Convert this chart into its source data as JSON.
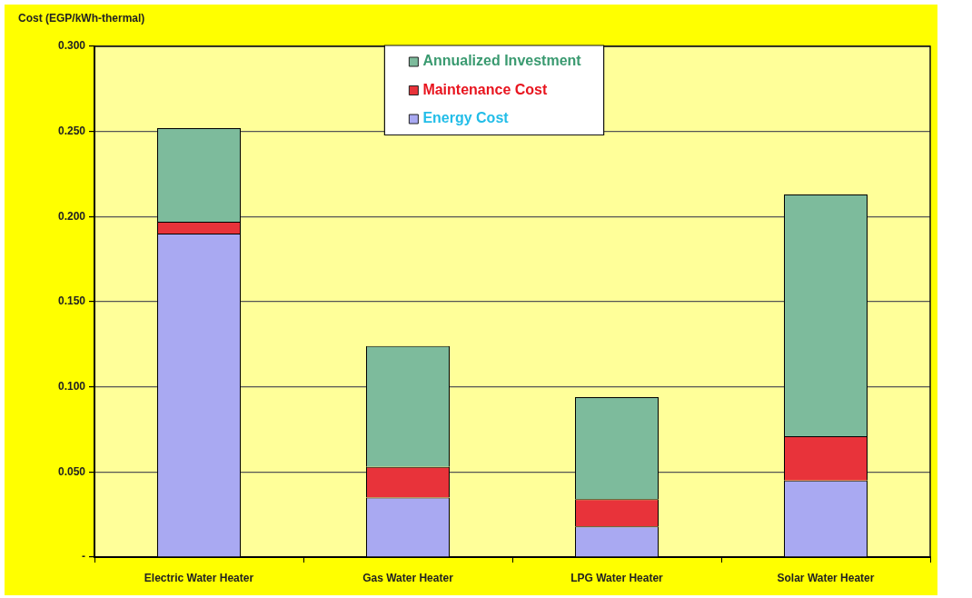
{
  "chart_data": {
    "type": "bar",
    "ylabel": "Cost (EGP/kWh-thermal)",
    "categories": [
      "Electric Water Heater",
      "Gas Water Heater",
      "LPG Water Heater",
      "Solar Water Heater"
    ],
    "series": [
      {
        "name": "Energy Cost",
        "color": "#a9a9f2",
        "values": [
          0.19,
          0.035,
          0.018,
          0.045
        ]
      },
      {
        "name": "Maintenance Cost",
        "color": "#e8333a",
        "values": [
          0.007,
          0.018,
          0.016,
          0.026
        ]
      },
      {
        "name": "Annualized Investment",
        "color": "#7dbb9c",
        "values": [
          0.055,
          0.071,
          0.06,
          0.142
        ]
      }
    ],
    "stacked": true,
    "ylim": [
      0,
      0.3
    ],
    "yticks": [
      {
        "value": 0,
        "label": "-"
      },
      {
        "value": 0.05,
        "label": "0.050"
      },
      {
        "value": 0.1,
        "label": "0.100"
      },
      {
        "value": 0.15,
        "label": "0.150"
      },
      {
        "value": 0.2,
        "label": "0.200"
      },
      {
        "value": 0.25,
        "label": "0.250"
      },
      {
        "value": 0.3,
        "label": "0.300"
      }
    ],
    "grid": "y",
    "legend": "top"
  }
}
